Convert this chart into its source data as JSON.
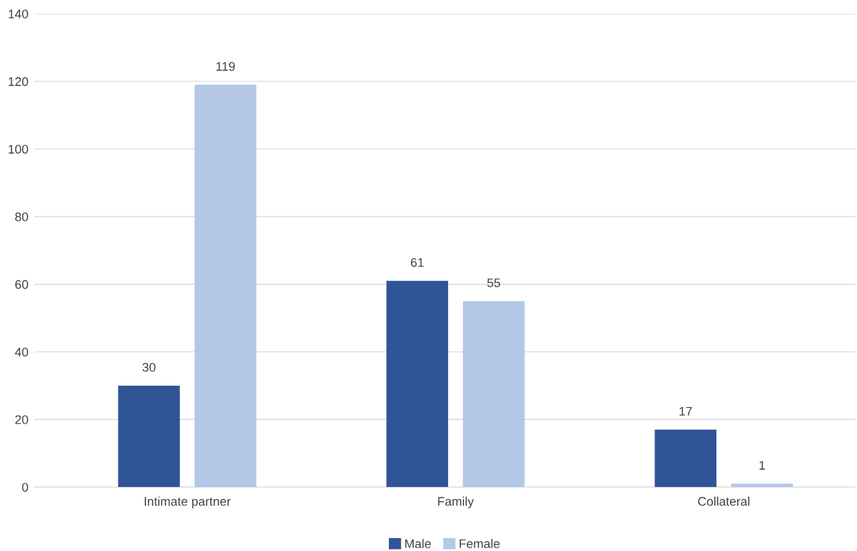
{
  "chart_data": {
    "type": "bar",
    "categories": [
      "Intimate partner",
      "Family",
      "Collateral"
    ],
    "series": [
      {
        "name": "Male",
        "color": "#2f5597",
        "values": [
          30,
          61,
          17
        ]
      },
      {
        "name": "Female",
        "color": "#b4c7e7",
        "values": [
          119,
          55,
          1
        ]
      }
    ],
    "ylim": [
      0,
      140
    ],
    "yticks": [
      0,
      20,
      40,
      60,
      80,
      100,
      120,
      140
    ],
    "grid": "y",
    "legend": "bottom",
    "data_labels": true
  }
}
